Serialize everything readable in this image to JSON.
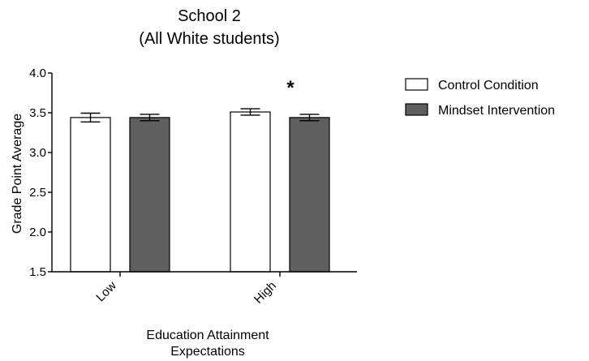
{
  "chart_data": {
    "type": "bar",
    "title": [
      "School 2",
      "(All White students)"
    ],
    "ylabel": "Grade Point Average",
    "xlabel": [
      "Education Attainment",
      "Expectations"
    ],
    "ylim": [
      1.5,
      4.0
    ],
    "yticks": [
      "1.5",
      "2.0",
      "2.5",
      "3.0",
      "3.5",
      "4.0"
    ],
    "categories": [
      "Low",
      "High"
    ],
    "series": [
      {
        "name": "Control Condition",
        "color": "#ffffff",
        "values": [
          3.44,
          3.51
        ],
        "error": [
          0.055,
          0.04
        ]
      },
      {
        "name": "Mindset Intervention",
        "color": "#5f5f5f",
        "values": [
          3.44,
          3.44
        ],
        "error": [
          0.04,
          0.04
        ]
      }
    ],
    "annotations": [
      {
        "text": "*",
        "category": "High"
      }
    ],
    "legend": "right",
    "grid": false
  }
}
